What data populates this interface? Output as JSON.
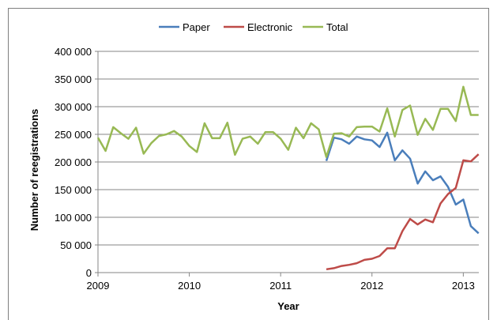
{
  "chart_data": {
    "type": "line",
    "title": "",
    "xlabel": "Year",
    "ylabel": "Number of reegistrations",
    "xlim": [
      2009.0,
      2013.17
    ],
    "ylim": [
      0,
      400000
    ],
    "x_ticks": [
      {
        "value": 2009,
        "label": "2009"
      },
      {
        "value": 2010,
        "label": "2010"
      },
      {
        "value": 2011,
        "label": "2011"
      },
      {
        "value": 2012,
        "label": "2012"
      },
      {
        "value": 2013,
        "label": "2013"
      }
    ],
    "y_ticks": [
      {
        "value": 0,
        "label": "0"
      },
      {
        "value": 50000,
        "label": "50 000"
      },
      {
        "value": 100000,
        "label": "100 000"
      },
      {
        "value": 150000,
        "label": "150 000"
      },
      {
        "value": 200000,
        "label": "200 000"
      },
      {
        "value": 250000,
        "label": "250 000"
      },
      {
        "value": 300000,
        "label": "300 000"
      },
      {
        "value": 350000,
        "label": "350 000"
      },
      {
        "value": 400000,
        "label": "400 000"
      }
    ],
    "grid": {
      "horizontal": true,
      "vertical": false
    },
    "legend_position": "top",
    "series": [
      {
        "name": "Paper",
        "color": "#4a7ebb",
        "x": [
          2011.5,
          2011.583,
          2011.667,
          2011.75,
          2011.833,
          2011.917,
          2012.0,
          2012.083,
          2012.167,
          2012.25,
          2012.333,
          2012.417,
          2012.5,
          2012.583,
          2012.667,
          2012.75,
          2012.833,
          2012.917,
          2013.0,
          2013.083,
          2013.167
        ],
        "y": [
          202000,
          244000,
          241000,
          233000,
          246000,
          241000,
          239000,
          227000,
          253000,
          203000,
          221000,
          206000,
          161000,
          183000,
          167000,
          174000,
          155000,
          123000,
          132000,
          84000,
          71000
        ]
      },
      {
        "name": "Electronic",
        "color": "#be4b48",
        "x": [
          2011.5,
          2011.583,
          2011.667,
          2011.75,
          2011.833,
          2011.917,
          2012.0,
          2012.083,
          2012.167,
          2012.25,
          2012.333,
          2012.417,
          2012.5,
          2012.583,
          2012.667,
          2012.75,
          2012.833,
          2012.917,
          2013.0,
          2013.083,
          2013.167
        ],
        "y": [
          6000,
          8000,
          12000,
          14000,
          17000,
          23000,
          25000,
          30000,
          44000,
          44000,
          75000,
          97000,
          87000,
          96000,
          91000,
          125000,
          142000,
          153000,
          203000,
          201000,
          214000
        ]
      },
      {
        "name": "Total",
        "color": "#98b954",
        "x": [
          2009.0,
          2009.083,
          2009.167,
          2009.25,
          2009.333,
          2009.417,
          2009.5,
          2009.583,
          2009.667,
          2009.75,
          2009.833,
          2009.917,
          2010.0,
          2010.083,
          2010.167,
          2010.25,
          2010.333,
          2010.417,
          2010.5,
          2010.583,
          2010.667,
          2010.75,
          2010.833,
          2010.917,
          2011.0,
          2011.083,
          2011.167,
          2011.25,
          2011.333,
          2011.417,
          2011.5,
          2011.583,
          2011.667,
          2011.75,
          2011.833,
          2011.917,
          2012.0,
          2012.083,
          2012.167,
          2012.25,
          2012.333,
          2012.417,
          2012.5,
          2012.583,
          2012.667,
          2012.75,
          2012.833,
          2012.917,
          2013.0,
          2013.083,
          2013.167
        ],
        "y": [
          244000,
          220000,
          263000,
          252000,
          242000,
          262000,
          215000,
          234000,
          247000,
          250000,
          256000,
          246000,
          229000,
          218000,
          270000,
          243000,
          243000,
          271000,
          213000,
          242000,
          246000,
          233000,
          254000,
          254000,
          242000,
          222000,
          262000,
          243000,
          270000,
          259000,
          209000,
          251000,
          252000,
          246000,
          263000,
          264000,
          264000,
          255000,
          297000,
          246000,
          294000,
          302000,
          249000,
          278000,
          258000,
          296000,
          296000,
          274000,
          336000,
          285000,
          285000
        ]
      }
    ]
  }
}
